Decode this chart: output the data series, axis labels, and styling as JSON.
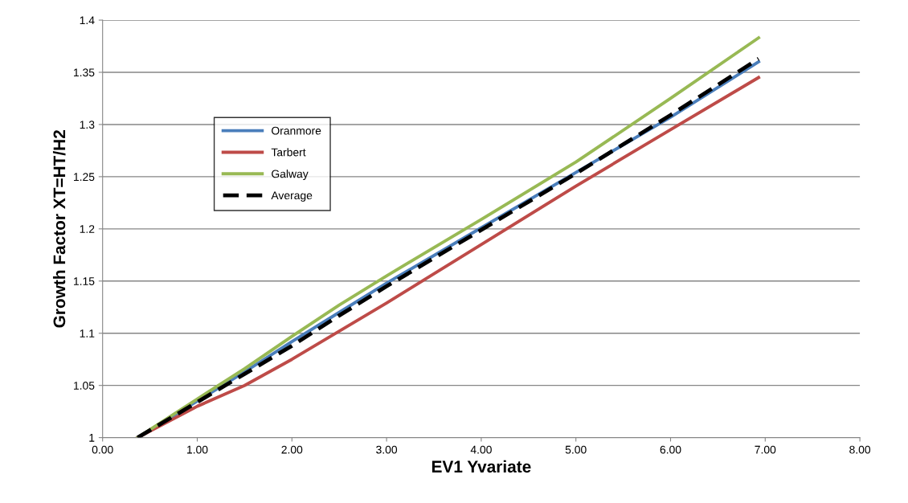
{
  "chart_data": {
    "type": "line",
    "xlabel": "EV1 Yvariate",
    "ylabel": "Growth Factor XT=HT/H2",
    "x": [
      0.37,
      1.0,
      1.5,
      2.0,
      2.5,
      3.0,
      4.0,
      5.0,
      6.0,
      6.93
    ],
    "series": [
      {
        "name": "Oranmore",
        "color": "#4a7ebb",
        "values": [
          1.0,
          1.035,
          1.063,
          1.092,
          1.12,
          1.148,
          1.201,
          1.254,
          1.307,
          1.36
        ]
      },
      {
        "name": "Tarbert",
        "color": "#be4b48",
        "values": [
          1.0,
          1.03,
          1.05,
          1.075,
          1.102,
          1.129,
          1.185,
          1.241,
          1.295,
          1.345
        ]
      },
      {
        "name": "Galway",
        "color": "#98b954",
        "values": [
          1.0,
          1.037,
          1.066,
          1.097,
          1.127,
          1.155,
          1.209,
          1.264,
          1.325,
          1.383
        ]
      },
      {
        "name": "Average",
        "color": "#000000",
        "line_style": "dashed",
        "values": [
          1.0,
          1.034,
          1.061,
          1.088,
          1.117,
          1.145,
          1.199,
          1.253,
          1.309,
          1.363
        ]
      }
    ],
    "xlim": [
      0,
      8
    ],
    "xticks": [
      {
        "value": 0,
        "label": "0.00"
      },
      {
        "value": 1,
        "label": "1.00"
      },
      {
        "value": 2,
        "label": "2.00"
      },
      {
        "value": 3,
        "label": "3.00"
      },
      {
        "value": 4,
        "label": "4.00"
      },
      {
        "value": 5,
        "label": "5.00"
      },
      {
        "value": 6,
        "label": "6.00"
      },
      {
        "value": 7,
        "label": "7.00"
      },
      {
        "value": 8,
        "label": "8.00"
      }
    ],
    "ylim": [
      1,
      1.4
    ],
    "yticks": [
      1,
      1.05,
      1.1,
      1.15,
      1.2,
      1.25,
      1.3,
      1.35,
      1.4
    ],
    "grid": "y",
    "legend": "top left",
    "marker": "none",
    "line_style": "solid"
  }
}
